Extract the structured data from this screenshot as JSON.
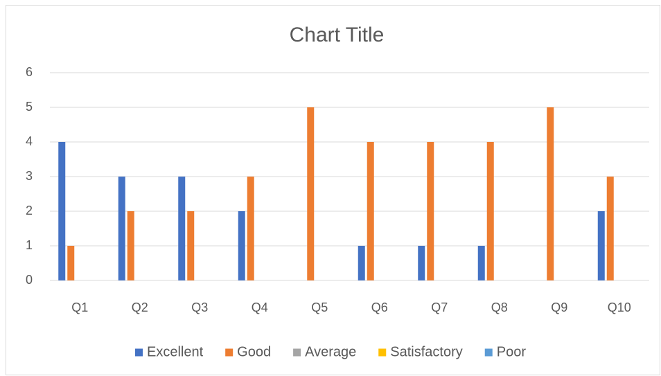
{
  "chart_data": {
    "type": "bar",
    "title": "Chart Title",
    "categories": [
      "Q1",
      "Q2",
      "Q3",
      "Q4",
      "Q5",
      "Q6",
      "Q7",
      "Q8",
      "Q9",
      "Q10"
    ],
    "series": [
      {
        "name": "Excellent",
        "color": "#4472c4",
        "values": [
          4,
          3,
          3,
          2,
          0,
          1,
          1,
          1,
          0,
          2
        ]
      },
      {
        "name": "Good",
        "color": "#ed7d31",
        "values": [
          1,
          2,
          2,
          3,
          5,
          4,
          4,
          4,
          5,
          3
        ]
      },
      {
        "name": "Average",
        "color": "#a5a5a5",
        "values": [
          0,
          0,
          0,
          0,
          0,
          0,
          0,
          0,
          0,
          0
        ]
      },
      {
        "name": "Satisfactory",
        "color": "#ffc000",
        "values": [
          0,
          0,
          0,
          0,
          0,
          0,
          0,
          0,
          0,
          0
        ]
      },
      {
        "name": "Poor",
        "color": "#5b9bd5",
        "values": [
          0,
          0,
          0,
          0,
          0,
          0,
          0,
          0,
          0,
          0
        ]
      }
    ],
    "ylim": [
      0,
      6
    ],
    "yticks": [
      0,
      1,
      2,
      3,
      4,
      5,
      6
    ],
    "grid": true,
    "legend": "bottom"
  }
}
